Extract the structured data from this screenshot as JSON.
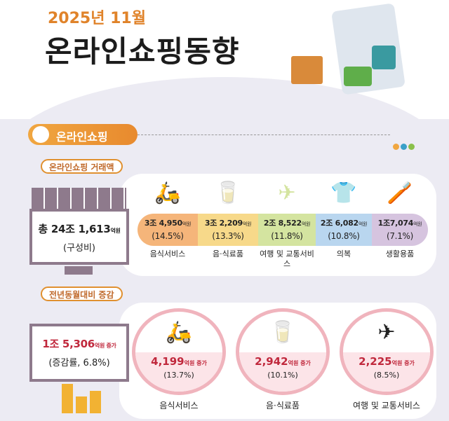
{
  "header": {
    "month": "2025년 11월",
    "title": "온라인쇼핑동향"
  },
  "main_label": "온라인쇼핑",
  "section1": {
    "label": "온라인쇼핑 거래액",
    "total": {
      "prefix": "총 24조 1,613",
      "unit": "억원",
      "sub": "(구성비)"
    },
    "items": [
      {
        "value": "3조 4,950",
        "unit": "억원",
        "pct": "(14.5%)",
        "category": "음식서비스",
        "color": "#f5b57a",
        "icon": "delivery-scooter-icon"
      },
      {
        "value": "3조 2,209",
        "unit": "억원",
        "pct": "(13.3%)",
        "category": "음·식료품",
        "color": "#f7d98a",
        "icon": "milk-bread-icon"
      },
      {
        "value": "2조 8,522",
        "unit": "억원",
        "pct": "(11.8%)",
        "category": "여행 및 교통서비스",
        "color": "#d4e4a0",
        "icon": "airplane-calendar-icon"
      },
      {
        "value": "2조 6,082",
        "unit": "억원",
        "pct": "(10.8%)",
        "category": "의복",
        "color": "#b9d6ef",
        "icon": "shirt-icon"
      },
      {
        "value": "1조7,074",
        "unit": "억원",
        "pct": "(7.1%)",
        "category": "생활용품",
        "color": "#d6c4df",
        "icon": "toothbrush-cup-icon"
      }
    ]
  },
  "section2": {
    "label": "전년동월대비 증감",
    "total": {
      "value": "1조 5,306",
      "unit": "억원 증가",
      "sub": "(증감률, 6.8%)"
    },
    "items": [
      {
        "value": "4,199",
        "unit": "억원 증가",
        "pct": "(13.7%)",
        "category": "음식서비스",
        "icon": "delivery-scooter-icon"
      },
      {
        "value": "2,942",
        "unit": "억원 증가",
        "pct": "(10.1%)",
        "category": "음·식료품",
        "icon": "milk-bread-icon"
      },
      {
        "value": "2,225",
        "unit": "억원 증가",
        "pct": "(8.5%)",
        "category": "여행 및 교통서비스",
        "icon": "airplane-calendar-icon"
      }
    ]
  },
  "colors": {
    "accent": "#e88a2e",
    "increase": "#c0283c",
    "frame": "#8e7a8c"
  }
}
